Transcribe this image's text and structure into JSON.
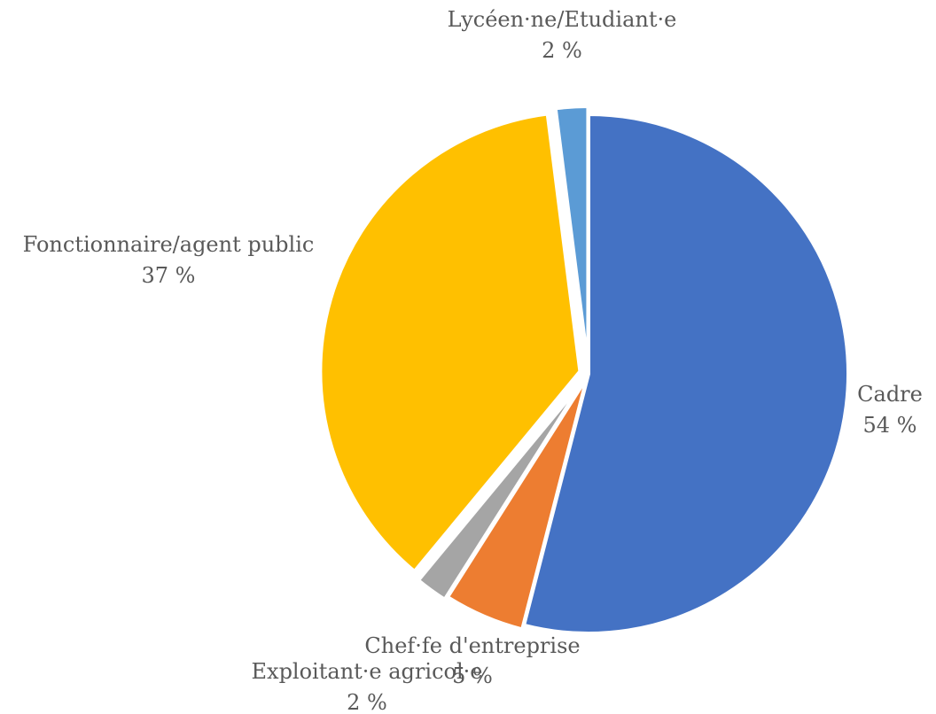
{
  "chart_data": {
    "type": "pie",
    "title": "",
    "slices": [
      {
        "name": "Cadre",
        "value": 54,
        "value_label": "54 %",
        "color": "#4472C4"
      },
      {
        "name": "Chef·fe d'entreprise",
        "value": 5,
        "value_label": "5 %",
        "color": "#ED7D31"
      },
      {
        "name": "Exploitant·e agricol·e",
        "value": 2,
        "value_label": "2 %",
        "color": "#A5A5A5"
      },
      {
        "name": "Fonctionnaire/agent public",
        "value": 37,
        "value_label": "37 %",
        "color": "#FFC000"
      },
      {
        "name": "Lycéen·ne/Etudiant·e",
        "value": 2,
        "value_label": "2 %",
        "color": "#5B9BD5"
      }
    ],
    "start_angle": "12 o'clock",
    "direction": "clockwise",
    "legend": "none",
    "data_labels": "category name and percentage"
  }
}
